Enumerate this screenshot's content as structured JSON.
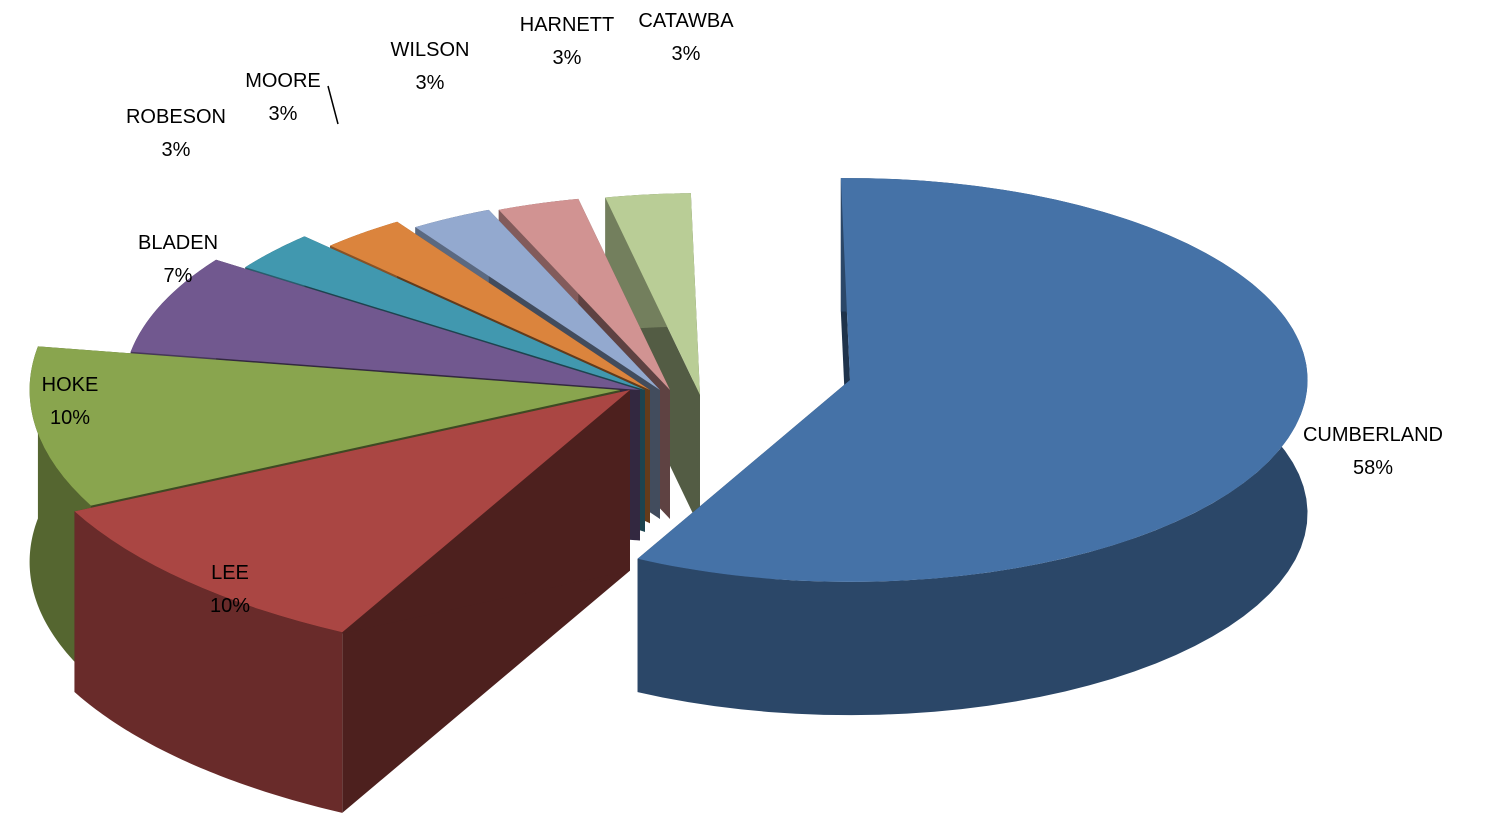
{
  "chart_data": {
    "type": "pie",
    "style": "3d-exploded",
    "slices": [
      {
        "name": "CUMBERLAND",
        "value": 58,
        "label": "58%",
        "color": "#4572A7"
      },
      {
        "name": "LEE",
        "value": 10,
        "label": "10%",
        "color": "#AA4643"
      },
      {
        "name": "HOKE",
        "value": 10,
        "label": "10%",
        "color": "#89A54E"
      },
      {
        "name": "BLADEN",
        "value": 7,
        "label": "7%",
        "color": "#71588F"
      },
      {
        "name": "ROBESON",
        "value": 3,
        "label": "3%",
        "color": "#4198AF"
      },
      {
        "name": "MOORE",
        "value": 3,
        "label": "3%",
        "color": "#DB843D"
      },
      {
        "name": "WILSON",
        "value": 3,
        "label": "3%",
        "color": "#93A9CF"
      },
      {
        "name": "HARNETT",
        "value": 3,
        "label": "3%",
        "color": "#D19392"
      },
      {
        "name": "CATAWBA",
        "value": 3,
        "label": "3%",
        "color": "#B9CD96"
      }
    ],
    "legend": "none",
    "data_labels": "category-and-percent"
  }
}
